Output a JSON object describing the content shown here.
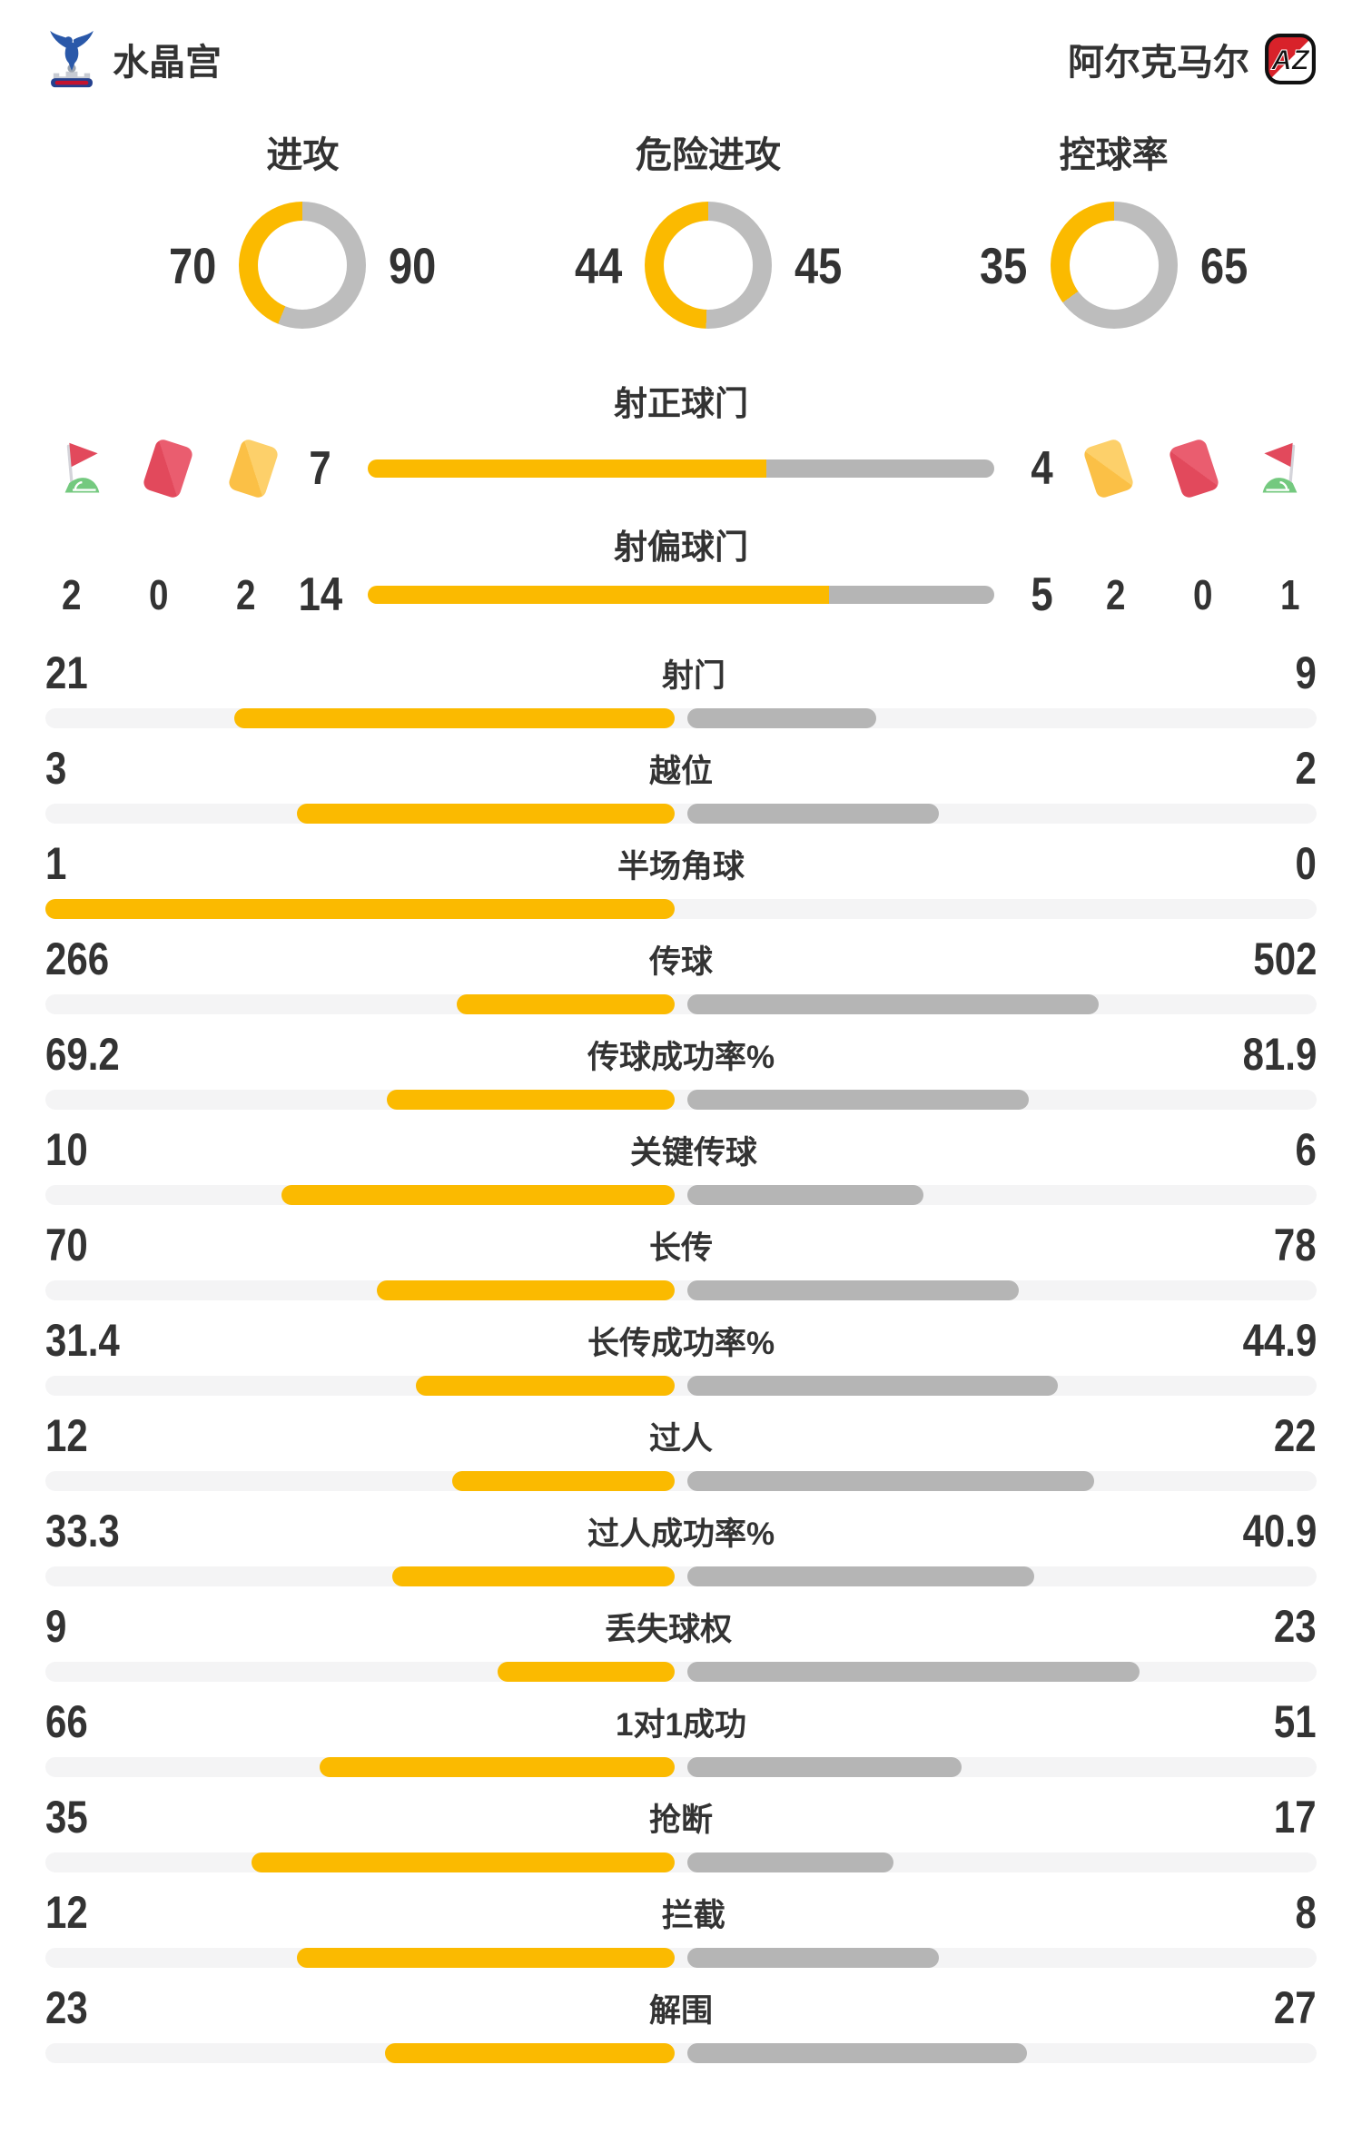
{
  "header": {
    "home": {
      "name": "水晶宫",
      "logo": "crystal-palace-crest"
    },
    "away": {
      "name": "阿尔克马尔",
      "logo": "az-alkmaar-logo"
    }
  },
  "colors": {
    "home_accent": "#FBBA00",
    "away_accent": "#B5B5B5",
    "donut_away": "#BDBDBD",
    "bar_track": "#F4F4F5",
    "text": "#333333",
    "card_red": "#E2495C",
    "card_yellow": "#FBC046",
    "flag_green": "#74C97F",
    "flag_red": "#E2495C"
  },
  "overview": {
    "donuts": [
      {
        "label": "进攻",
        "home": 70,
        "away": 90
      },
      {
        "label": "危险进攻",
        "home": 44,
        "away": 45
      },
      {
        "label": "控球率",
        "home": 35,
        "away": 65
      }
    ]
  },
  "cards": {
    "home": [
      {
        "icon": "corner-flag-icon",
        "count": 2
      },
      {
        "icon": "red-card-icon",
        "count": 0
      },
      {
        "icon": "yellow-card-icon",
        "count": 2
      }
    ],
    "away": [
      {
        "icon": "yellow-card-icon",
        "count": 2
      },
      {
        "icon": "red-card-icon",
        "count": 0
      },
      {
        "icon": "corner-flag-icon",
        "count": 1
      }
    ]
  },
  "shots": {
    "rows": [
      {
        "label": "射正球门",
        "home": 7,
        "away": 4
      },
      {
        "label": "射偏球门",
        "home": 14,
        "away": 5
      }
    ]
  },
  "stats": {
    "rows": [
      {
        "label": "射门",
        "home": 21,
        "away": 9
      },
      {
        "label": "越位",
        "home": 3,
        "away": 2
      },
      {
        "label": "半场角球",
        "home": 1,
        "away": 0
      },
      {
        "label": "传球",
        "home": 266,
        "away": 502
      },
      {
        "label": "传球成功率%",
        "home": 69.2,
        "away": 81.9
      },
      {
        "label": "关键传球",
        "home": 10,
        "away": 6
      },
      {
        "label": "长传",
        "home": 70,
        "away": 78
      },
      {
        "label": "长传成功率%",
        "home": 31.4,
        "away": 44.9
      },
      {
        "label": "过人",
        "home": 12,
        "away": 22
      },
      {
        "label": "过人成功率%",
        "home": 33.3,
        "away": 40.9
      },
      {
        "label": "丢失球权",
        "home": 9,
        "away": 23
      },
      {
        "label": "1对1成功",
        "home": 66,
        "away": 51
      },
      {
        "label": "抢断",
        "home": 35,
        "away": 17
      },
      {
        "label": "拦截",
        "home": 12,
        "away": 8
      },
      {
        "label": "解围",
        "home": 23,
        "away": 27
      }
    ]
  }
}
